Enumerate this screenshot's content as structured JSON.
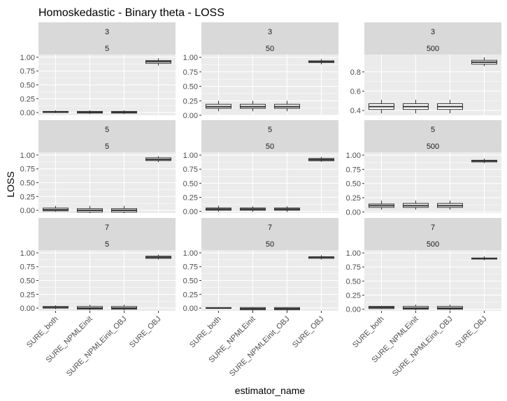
{
  "chart_data": {
    "type": "boxplot",
    "title": "Homoskedastic - Binary theta - LOSS",
    "xlabel": "estimator_name",
    "ylabel": "LOSS",
    "categories": [
      "SURE_both",
      "SURE_NPMLEinit",
      "SURE_NPMLEinit_OBJ",
      "SURE_OBJ"
    ],
    "grid": true,
    "panels": [
      {
        "facet_top": "3",
        "facet_bottom": "5",
        "yticks": [
          "0.00",
          "0.25",
          "0.50",
          "0.75",
          "1.00"
        ],
        "ylim": [
          -0.05,
          1.05
        ],
        "boxes": [
          {
            "category": "SURE_both",
            "lower_whisker": -0.01,
            "q1": 0.0,
            "median": 0.01,
            "q3": 0.02,
            "upper_whisker": 0.04
          },
          {
            "category": "SURE_NPMLEinit",
            "lower_whisker": -0.03,
            "q1": -0.01,
            "median": 0.0,
            "q3": 0.02,
            "upper_whisker": 0.04
          },
          {
            "category": "SURE_NPMLEinit_OBJ",
            "lower_whisker": -0.03,
            "q1": -0.01,
            "median": 0.0,
            "q3": 0.02,
            "upper_whisker": 0.04
          },
          {
            "category": "SURE_OBJ",
            "lower_whisker": 0.85,
            "q1": 0.89,
            "median": 0.92,
            "q3": 0.94,
            "upper_whisker": 0.98
          }
        ]
      },
      {
        "facet_top": "3",
        "facet_bottom": "50",
        "yticks": [
          "0.00",
          "0.25",
          "0.50",
          "0.75",
          "1.00"
        ],
        "ylim": [
          0.0,
          1.05
        ],
        "boxes": [
          {
            "category": "SURE_both",
            "lower_whisker": 0.07,
            "q1": 0.12,
            "median": 0.15,
            "q3": 0.19,
            "upper_whisker": 0.25
          },
          {
            "category": "SURE_NPMLEinit",
            "lower_whisker": 0.07,
            "q1": 0.12,
            "median": 0.15,
            "q3": 0.19,
            "upper_whisker": 0.25
          },
          {
            "category": "SURE_NPMLEinit_OBJ",
            "lower_whisker": 0.07,
            "q1": 0.12,
            "median": 0.15,
            "q3": 0.19,
            "upper_whisker": 0.25
          },
          {
            "category": "SURE_OBJ",
            "lower_whisker": 0.88,
            "q1": 0.91,
            "median": 0.93,
            "q3": 0.94,
            "upper_whisker": 0.97
          }
        ]
      },
      {
        "facet_top": "3",
        "facet_bottom": "500",
        "yticks": [
          "0.4",
          "0.6",
          "0.8"
        ],
        "ylim": [
          0.35,
          0.98
        ],
        "boxes": [
          {
            "category": "SURE_both",
            "lower_whisker": 0.37,
            "q1": 0.41,
            "median": 0.44,
            "q3": 0.47,
            "upper_whisker": 0.51
          },
          {
            "category": "SURE_NPMLEinit",
            "lower_whisker": 0.37,
            "q1": 0.41,
            "median": 0.44,
            "q3": 0.47,
            "upper_whisker": 0.51
          },
          {
            "category": "SURE_NPMLEinit_OBJ",
            "lower_whisker": 0.37,
            "q1": 0.41,
            "median": 0.44,
            "q3": 0.47,
            "upper_whisker": 0.51
          },
          {
            "category": "SURE_OBJ",
            "lower_whisker": 0.86,
            "q1": 0.88,
            "median": 0.9,
            "q3": 0.92,
            "upper_whisker": 0.95
          }
        ]
      },
      {
        "facet_top": "5",
        "facet_bottom": "5",
        "yticks": [
          "0.00",
          "0.25",
          "0.50",
          "0.75",
          "1.00"
        ],
        "ylim": [
          -0.05,
          1.05
        ],
        "boxes": [
          {
            "category": "SURE_both",
            "lower_whisker": -0.03,
            "q1": -0.01,
            "median": 0.01,
            "q3": 0.04,
            "upper_whisker": 0.08
          },
          {
            "category": "SURE_NPMLEinit",
            "lower_whisker": -0.05,
            "q1": -0.03,
            "median": 0.0,
            "q3": 0.03,
            "upper_whisker": 0.08
          },
          {
            "category": "SURE_NPMLEinit_OBJ",
            "lower_whisker": -0.05,
            "q1": -0.03,
            "median": 0.0,
            "q3": 0.03,
            "upper_whisker": 0.08
          },
          {
            "category": "SURE_OBJ",
            "lower_whisker": 0.87,
            "q1": 0.9,
            "median": 0.92,
            "q3": 0.95,
            "upper_whisker": 0.98
          }
        ]
      },
      {
        "facet_top": "5",
        "facet_bottom": "50",
        "yticks": [
          "0.00",
          "0.25",
          "0.50",
          "0.75",
          "1.00"
        ],
        "ylim": [
          -0.03,
          1.05
        ],
        "boxes": [
          {
            "category": "SURE_both",
            "lower_whisker": -0.01,
            "q1": 0.02,
            "median": 0.04,
            "q3": 0.06,
            "upper_whisker": 0.1
          },
          {
            "category": "SURE_NPMLEinit",
            "lower_whisker": -0.01,
            "q1": 0.02,
            "median": 0.04,
            "q3": 0.06,
            "upper_whisker": 0.09
          },
          {
            "category": "SURE_NPMLEinit_OBJ",
            "lower_whisker": -0.01,
            "q1": 0.02,
            "median": 0.04,
            "q3": 0.06,
            "upper_whisker": 0.09
          },
          {
            "category": "SURE_OBJ",
            "lower_whisker": 0.88,
            "q1": 0.9,
            "median": 0.92,
            "q3": 0.94,
            "upper_whisker": 0.97
          }
        ]
      },
      {
        "facet_top": "5",
        "facet_bottom": "500",
        "yticks": [
          "0.00",
          "0.25",
          "0.50",
          "0.75",
          "1.00"
        ],
        "ylim": [
          -0.02,
          1.05
        ],
        "boxes": [
          {
            "category": "SURE_both",
            "lower_whisker": 0.04,
            "q1": 0.08,
            "median": 0.11,
            "q3": 0.14,
            "upper_whisker": 0.2
          },
          {
            "category": "SURE_NPMLEinit",
            "lower_whisker": 0.04,
            "q1": 0.08,
            "median": 0.11,
            "q3": 0.15,
            "upper_whisker": 0.2
          },
          {
            "category": "SURE_NPMLEinit_OBJ",
            "lower_whisker": 0.04,
            "q1": 0.08,
            "median": 0.11,
            "q3": 0.15,
            "upper_whisker": 0.2
          },
          {
            "category": "SURE_OBJ",
            "lower_whisker": 0.86,
            "q1": 0.88,
            "median": 0.9,
            "q3": 0.91,
            "upper_whisker": 0.94
          }
        ]
      },
      {
        "facet_top": "7",
        "facet_bottom": "5",
        "yticks": [
          "0.00",
          "0.25",
          "0.50",
          "0.75",
          "1.00"
        ],
        "ylim": [
          -0.05,
          1.05
        ],
        "boxes": [
          {
            "category": "SURE_both",
            "lower_whisker": -0.02,
            "q1": 0.0,
            "median": 0.01,
            "q3": 0.03,
            "upper_whisker": 0.05
          },
          {
            "category": "SURE_NPMLEinit",
            "lower_whisker": -0.04,
            "q1": -0.02,
            "median": 0.0,
            "q3": 0.03,
            "upper_whisker": 0.06
          },
          {
            "category": "SURE_NPMLEinit_OBJ",
            "lower_whisker": -0.04,
            "q1": -0.02,
            "median": 0.0,
            "q3": 0.03,
            "upper_whisker": 0.06
          },
          {
            "category": "SURE_OBJ",
            "lower_whisker": 0.88,
            "q1": 0.9,
            "median": 0.92,
            "q3": 0.94,
            "upper_whisker": 0.97
          }
        ]
      },
      {
        "facet_top": "7",
        "facet_bottom": "50",
        "yticks": [
          "0.00",
          "0.25",
          "0.50",
          "0.75",
          "1.00"
        ],
        "ylim": [
          -0.05,
          1.05
        ],
        "boxes": [
          {
            "category": "SURE_both",
            "lower_whisker": -0.01,
            "q1": 0.0,
            "median": 0.0,
            "q3": 0.01,
            "upper_whisker": 0.02
          },
          {
            "category": "SURE_NPMLEinit",
            "lower_whisker": -0.05,
            "q1": -0.03,
            "median": -0.01,
            "q3": 0.01,
            "upper_whisker": 0.02
          },
          {
            "category": "SURE_NPMLEinit_OBJ",
            "lower_whisker": -0.05,
            "q1": -0.03,
            "median": -0.01,
            "q3": 0.01,
            "upper_whisker": 0.02
          },
          {
            "category": "SURE_OBJ",
            "lower_whisker": 0.88,
            "q1": 0.9,
            "median": 0.92,
            "q3": 0.93,
            "upper_whisker": 0.96
          }
        ]
      },
      {
        "facet_top": "7",
        "facet_bottom": "500",
        "yticks": [
          "0.00",
          "0.25",
          "0.50",
          "0.75",
          "1.00"
        ],
        "ylim": [
          -0.03,
          1.05
        ],
        "boxes": [
          {
            "category": "SURE_both",
            "lower_whisker": 0.0,
            "q1": 0.01,
            "median": 0.03,
            "q3": 0.05,
            "upper_whisker": 0.06
          },
          {
            "category": "SURE_NPMLEinit",
            "lower_whisker": -0.02,
            "q1": 0.0,
            "median": 0.02,
            "q3": 0.05,
            "upper_whisker": 0.08
          },
          {
            "category": "SURE_NPMLEinit_OBJ",
            "lower_whisker": -0.02,
            "q1": 0.0,
            "median": 0.02,
            "q3": 0.05,
            "upper_whisker": 0.08
          },
          {
            "category": "SURE_OBJ",
            "lower_whisker": 0.87,
            "q1": 0.89,
            "median": 0.9,
            "q3": 0.91,
            "upper_whisker": 0.94
          }
        ]
      }
    ]
  },
  "colors": {
    "panel_background": "#ebebeb",
    "strip_background": "#d9d9d9",
    "grid_line": "#ffffff",
    "box_fill": "#ffffff",
    "box_line": "#333333"
  }
}
